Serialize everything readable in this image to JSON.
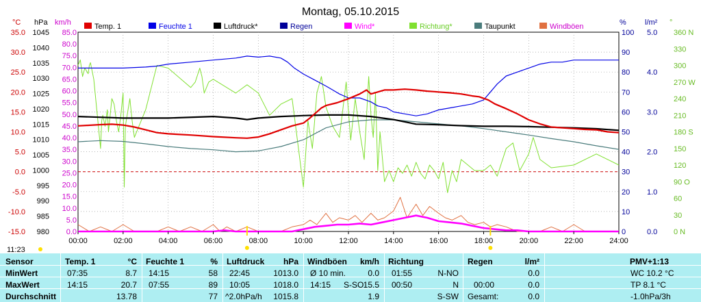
{
  "title": "Montag, 05.10.2015",
  "time_marker": "11:23",
  "colors": {
    "temp": "#e00000",
    "feuchte": "#0000e6",
    "luftdruck": "#000000",
    "regen": "#000099",
    "wind": "#ff00ff",
    "richtung": "#80e030",
    "taupunkt": "#4a7c7c",
    "windboeen": "#e07040",
    "frame": "#000000",
    "table_bg": "#aeeef2"
  },
  "chart_data": {
    "type": "line",
    "legend": [
      "Temp. 1",
      "Feuchte 1",
      "Luftdruck*",
      "Regen",
      "Wind*",
      "Richtung*",
      "Taupunkt",
      "Windböen"
    ],
    "axis_units": {
      "temp": "°C",
      "pressure": "hPa",
      "wind": "km/h",
      "humidity": "%",
      "rain": "l/m²",
      "direction": "°"
    },
    "x_ticks": [
      "00:00",
      "02:00",
      "04:00",
      "06:00",
      "08:00",
      "10:00",
      "12:00",
      "14:00",
      "16:00",
      "18:00",
      "20:00",
      "22:00",
      "24:00"
    ],
    "xlim": [
      0,
      24
    ],
    "temp_ticks": [
      "35.0",
      "30.0",
      "25.0",
      "20.0",
      "15.0",
      "10.0",
      "5.0",
      "0.0",
      "-5.0",
      "-10.0",
      "-15.0"
    ],
    "temp_ylim": [
      -15,
      35
    ],
    "pressure_ticks": [
      "1045",
      "1040",
      "1035",
      "1030",
      "1025",
      "1020",
      "1015",
      "1010",
      "1005",
      "1000",
      "995",
      "990",
      "985",
      "980"
    ],
    "wind_ticks": [
      "85.0",
      "80.0",
      "75.0",
      "70.0",
      "65.0",
      "60.0",
      "55.0",
      "50.0",
      "45.0",
      "40.0",
      "35.0",
      "30.0",
      "25.0",
      "20.0",
      "15.0",
      "10.0",
      "5.0",
      "0.0"
    ],
    "humidity_ticks": [
      "100",
      "90",
      "80",
      "70",
      "60",
      "50",
      "40",
      "30",
      "20",
      "10",
      "0"
    ],
    "rain_ticks": [
      "5.0",
      "4.0",
      "3.0",
      "2.0",
      "1.0",
      "0.0"
    ],
    "direction_ticks": [
      "360 N",
      "330",
      "300",
      "270 W",
      "240",
      "210",
      "180 S",
      "150",
      "120",
      "90 O",
      "60",
      "30",
      "0 N"
    ],
    "series": [
      {
        "name": "Temp. 1",
        "key": "temp",
        "scale": "temp",
        "width": 2.2,
        "x": [
          0,
          1,
          1.5,
          2,
          2.5,
          3,
          3.5,
          4,
          5,
          6,
          7,
          7.5,
          8,
          8.5,
          9,
          9.5,
          10,
          10.3,
          10.6,
          10.8,
          11,
          11.5,
          12,
          12.5,
          12.8,
          13,
          13.3,
          13.6,
          14,
          14.5,
          15,
          15.5,
          16,
          16.5,
          17,
          17.5,
          17.8,
          18.2,
          18.5,
          19,
          19.5,
          20,
          20.5,
          21,
          22,
          22.5,
          23,
          23.5,
          24
        ],
        "y": [
          11.5,
          11.8,
          11.9,
          11.7,
          11.2,
          10.5,
          9.8,
          9.5,
          9.2,
          8.8,
          8.5,
          8.4,
          8.7,
          9.5,
          10.5,
          11.5,
          12.2,
          13.5,
          15.0,
          16.0,
          16.6,
          17.3,
          18.3,
          19.5,
          20.5,
          19.5,
          20.0,
          20.5,
          20.5,
          20.7,
          20.5,
          20.2,
          20.0,
          19.8,
          19.5,
          19.0,
          18.8,
          18.0,
          17.0,
          15.8,
          14.5,
          13.0,
          12.0,
          11.2,
          10.8,
          10.6,
          10.5,
          10.0,
          9.8
        ]
      },
      {
        "name": "Feuchte 1",
        "key": "feuchte",
        "scale": "humidity",
        "width": 1.2,
        "x": [
          0,
          1,
          2,
          3,
          3.5,
          4,
          5,
          6,
          7,
          7.5,
          8,
          8.5,
          9,
          9.3,
          9.6,
          10,
          10.5,
          11,
          11.3,
          11.6,
          12,
          12.5,
          13,
          13.3,
          13.7,
          14,
          14.5,
          15,
          15.5,
          16,
          16.5,
          17,
          17.5,
          18,
          18.3,
          18.6,
          19,
          19.5,
          20,
          20.5,
          21,
          21.5,
          22,
          22.5,
          23,
          23.5,
          24
        ],
        "y": [
          82,
          82,
          82,
          82.5,
          83,
          84,
          85,
          86,
          87,
          88,
          87.5,
          88,
          87,
          85,
          82,
          79,
          76,
          73,
          71,
          69,
          67,
          67,
          65,
          63,
          62,
          60,
          59,
          58,
          59,
          61,
          62,
          63,
          64,
          66,
          70,
          74,
          78,
          80,
          82,
          84,
          85,
          85,
          86,
          86,
          86,
          86,
          86
        ]
      },
      {
        "name": "Luftdruck*",
        "key": "luftdruck",
        "scale": "pressure",
        "width": 2.2,
        "x": [
          0,
          2,
          4,
          6,
          7,
          7.5,
          8,
          9,
          10,
          11,
          12,
          13,
          14,
          15,
          16,
          17,
          18,
          19,
          20,
          21,
          22,
          23,
          24
        ],
        "y": [
          1017.5,
          1017,
          1017,
          1017.5,
          1017,
          1016.5,
          1017,
          1017.5,
          1017.8,
          1018,
          1018,
          1017.5,
          1016.5,
          1015,
          1014.8,
          1014.5,
          1014.3,
          1014.3,
          1014.2,
          1014,
          1013.8,
          1013.5,
          1013.0
        ]
      },
      {
        "name": "Taupunkt",
        "key": "taupunkt",
        "scale": "temp",
        "width": 1.2,
        "x": [
          0,
          1,
          2,
          3,
          4,
          5,
          6,
          7,
          8,
          9,
          10,
          11,
          12,
          13,
          14,
          15,
          16,
          17,
          18,
          19,
          20,
          21,
          22,
          23,
          24
        ],
        "y": [
          7.5,
          7.8,
          7.6,
          7.0,
          6.3,
          5.8,
          5.5,
          5.0,
          5.2,
          6.3,
          8.0,
          11.0,
          12.5,
          13.0,
          13.0,
          12.5,
          12.0,
          11.5,
          10.8,
          10.0,
          9.2,
          8.3,
          7.5,
          6.5,
          5.6
        ]
      },
      {
        "name": "Windböen",
        "key": "windboeen",
        "scale": "wind",
        "width": 1,
        "x": [
          0,
          0.5,
          1,
          1.5,
          2,
          2.5,
          3,
          3.5,
          4,
          4.5,
          5,
          5.5,
          6,
          6.3,
          6.6,
          7,
          7.5,
          8,
          8.5,
          9,
          9.5,
          10,
          10.3,
          10.6,
          11,
          11.3,
          11.6,
          12,
          12.3,
          12.6,
          13,
          13.3,
          13.6,
          14,
          14.3,
          14.6,
          15,
          15.3,
          15.6,
          16,
          16.3,
          16.6,
          17,
          17.3,
          17.6,
          18,
          18.3,
          18.6,
          19,
          19.5,
          20,
          20.5,
          21,
          21.5,
          22,
          22.5,
          23,
          23.5,
          24
        ],
        "y": [
          3,
          0,
          2,
          0,
          3,
          0,
          0,
          0,
          2,
          0,
          2,
          0,
          3,
          0,
          2,
          0,
          2,
          0,
          0,
          0,
          2,
          3,
          5,
          3,
          8,
          4,
          6,
          5,
          7,
          4,
          8,
          5,
          6,
          9,
          15,
          6,
          12,
          7,
          11,
          8,
          6,
          5,
          7,
          4,
          3,
          4,
          2,
          3,
          2,
          0,
          0,
          0,
          2,
          0,
          3,
          0,
          0,
          0,
          0
        ]
      },
      {
        "name": "Wind*",
        "key": "wind",
        "scale": "wind",
        "width": 2.6,
        "x": [
          0,
          2,
          4,
          6,
          6.5,
          7,
          8,
          9,
          9.5,
          10,
          10.5,
          11,
          11.5,
          12,
          12.5,
          13,
          13.5,
          14,
          14.5,
          15,
          15.5,
          16,
          16.5,
          17,
          17.5,
          18,
          18.5,
          19,
          19.5,
          20,
          21,
          22,
          23,
          24
        ],
        "y": [
          0,
          0,
          0,
          0,
          0.5,
          0,
          0,
          0,
          0,
          1,
          2,
          2.5,
          3,
          3,
          3.5,
          3,
          4,
          5,
          6,
          7,
          6,
          4.5,
          4,
          3.5,
          2.5,
          1.5,
          1,
          0.5,
          0.5,
          0,
          0,
          0,
          0,
          0
        ]
      },
      {
        "name": "Richtung*",
        "key": "richtung",
        "scale": "direction",
        "width": 1,
        "x": [
          0,
          0.1,
          0.2,
          0.3,
          0.45,
          0.5,
          0.55,
          0.7,
          1,
          1.05,
          1.1,
          1.2,
          1.3,
          1.35,
          1.4,
          1.5,
          1.6,
          1.7,
          1.8,
          1.9,
          2.0,
          2.05,
          2.1,
          2.2,
          2.3,
          2.4,
          2.5,
          3,
          3.5,
          4,
          5,
          5.2,
          5.4,
          5.5,
          5.6,
          5.8,
          6,
          7,
          7.5,
          8,
          8.5,
          9,
          9.5,
          10,
          10.2,
          10.4,
          10.6,
          10.8,
          11,
          11.3,
          11.6,
          11.9,
          12.1,
          12.3,
          12.5,
          12.7,
          12.9,
          13.0,
          13.1,
          13.2,
          13.3,
          13.4,
          13.6,
          13.8,
          14,
          14.2,
          14.4,
          14.6,
          14.8,
          15,
          15.2,
          15.4,
          15.6,
          15.8,
          16,
          16.2,
          16.4,
          16.6,
          16.8,
          17,
          17.3,
          17.6,
          18,
          18.3,
          18.6,
          19,
          19.3,
          19.6,
          20,
          20.2,
          20.5,
          21,
          22,
          23,
          24
        ],
        "y": [
          300,
          310,
          280,
          295,
          285,
          300,
          305,
          275,
          150,
          200,
          210,
          190,
          220,
          180,
          200,
          240,
          230,
          200,
          180,
          210,
          250,
          80,
          190,
          215,
          240,
          200,
          170,
          220,
          300,
          295,
          260,
          270,
          295,
          280,
          250,
          270,
          275,
          250,
          265,
          250,
          210,
          230,
          240,
          80,
          200,
          150,
          250,
          280,
          225,
          190,
          170,
          270,
          165,
          240,
          180,
          130,
          280,
          210,
          170,
          250,
          110,
          180,
          90,
          110,
          90,
          115,
          105,
          120,
          100,
          125,
          105,
          95,
          120,
          110,
          95,
          125,
          70,
          110,
          90,
          130,
          120,
          110,
          110,
          120,
          100,
          150,
          160,
          110,
          140,
          170,
          130,
          115,
          120,
          140,
          120
        ]
      }
    ],
    "markers": [
      {
        "label": "11:23",
        "t": 11.38
      },
      {
        "label": "",
        "t": 7.5
      },
      {
        "label": "",
        "t": 18.3
      }
    ]
  },
  "table": {
    "headers": {
      "sensor": "Sensor",
      "temp": "Temp. 1",
      "temp_unit": "°C",
      "feuchte": "Feuchte 1",
      "feuchte_unit": "%",
      "luftdruck": "Luftdruck",
      "luftdruck_unit": "hPa",
      "windboeen": "Windböen",
      "windboeen_unit": "km/h",
      "richtung": "Richtung",
      "regen": "Regen",
      "regen_unit": "l/m²",
      "pmv": "PMV+1:13"
    },
    "min": {
      "label": "MinWert",
      "temp_time": "07:35",
      "temp_val": "8.7",
      "feuchte_time": "14:15",
      "feuchte_val": "58",
      "luftdruck_time": "22:45",
      "luftdruck_val": "1013.0",
      "wind_label": "Ø 10 min.",
      "wind_val": "0.0",
      "richtung_time": "01:55",
      "richtung_val": "N-NO",
      "regen_time": "",
      "regen_val": "0.0",
      "pmv": "WC 10.2 °C"
    },
    "max": {
      "label": "MaxWert",
      "temp_time": "14:15",
      "temp_val": "20.7",
      "feuchte_time": "07:55",
      "feuchte_val": "89",
      "luftdruck_time": "10:05",
      "luftdruck_val": "1018.0",
      "wind_time": "14:15",
      "wind_dir": "S-SO",
      "wind_val": "15.5",
      "richtung_time": "00:50",
      "richtung_val": "N",
      "regen_time": "00:00",
      "regen_val": "0.0",
      "pmv": "TP 8.1 °C"
    },
    "avg": {
      "label": "Durchschnitt",
      "temp_val": "13.78",
      "feuchte_val": "77",
      "luftdruck_trend": "^2.0hPa/h",
      "luftdruck_val": "1015.8",
      "wind_val": "1.9",
      "richtung_val": "S-SW",
      "regen_label": "Gesamt:",
      "regen_val": "0.0",
      "pmv": "-1.0hPa/3h"
    }
  }
}
